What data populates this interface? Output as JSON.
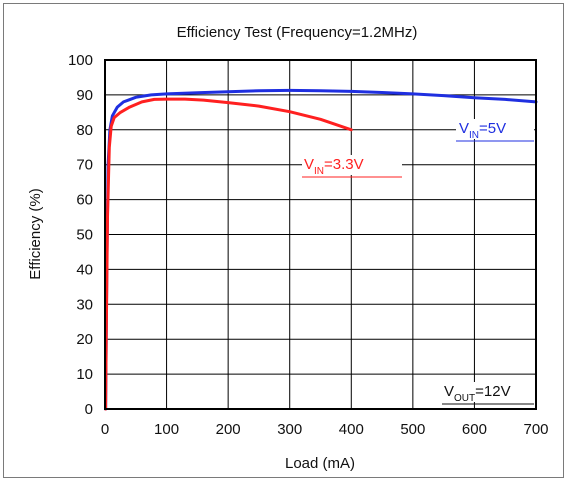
{
  "chart_data": {
    "type": "line",
    "title": "Efficiency Test (Frequency=1.2MHz)",
    "xlabel": "Load (mA)",
    "ylabel": "Efficiency (%)",
    "xlim": [
      0,
      700
    ],
    "ylim": [
      0,
      100
    ],
    "x_ticks": [
      0,
      100,
      200,
      300,
      400,
      500,
      600,
      700
    ],
    "y_ticks": [
      0,
      10,
      20,
      30,
      40,
      50,
      60,
      70,
      80,
      90,
      100
    ],
    "grid": true,
    "series": [
      {
        "name": "V_IN=5V",
        "color": "#1f2fe0",
        "x": [
          1,
          3,
          5,
          8,
          12,
          20,
          30,
          50,
          75,
          100,
          150,
          200,
          250,
          300,
          350,
          400,
          450,
          500,
          550,
          600,
          650,
          700
        ],
        "y": [
          0,
          40,
          70,
          80,
          84,
          86.5,
          88,
          89.3,
          90,
          90.3,
          90.6,
          90.9,
          91.2,
          91.3,
          91.2,
          91.0,
          90.7,
          90.3,
          89.8,
          89.2,
          88.7,
          88.0
        ]
      },
      {
        "name": "V_IN=3.3V",
        "color": "#ff2020",
        "x": [
          1,
          2,
          4,
          7,
          10,
          15,
          25,
          40,
          60,
          80,
          100,
          130,
          160,
          200,
          250,
          300,
          350,
          400
        ],
        "y": [
          0,
          20,
          55,
          75,
          81,
          83.5,
          85,
          86.5,
          88,
          88.7,
          88.8,
          88.8,
          88.5,
          87.8,
          86.8,
          85.2,
          83,
          80
        ]
      }
    ],
    "annotations": [
      {
        "id": "vin5",
        "base": "V",
        "sub": "IN",
        "rest": "=5V",
        "color": "#1f2fe0"
      },
      {
        "id": "vin33",
        "base": "V",
        "sub": "IN",
        "rest": "=3.3V",
        "color": "#ff2020"
      },
      {
        "id": "vout",
        "base": "V",
        "sub": "OUT",
        "rest": "=12V",
        "color": "#111111"
      }
    ]
  }
}
